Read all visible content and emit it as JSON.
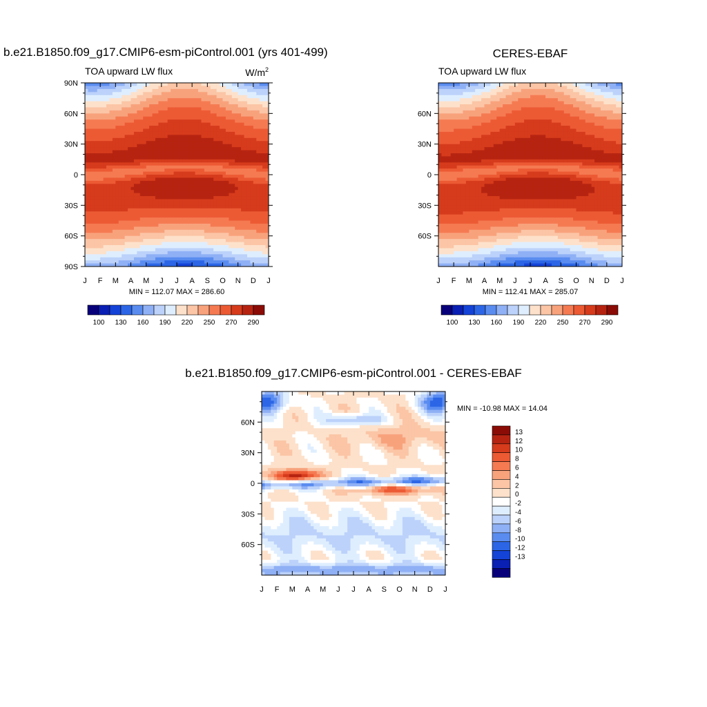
{
  "chart_data": [
    {
      "type": "heatmap",
      "id": "model",
      "title": "b.e21.B1850.f09_g17.CMIP6-esm-piControl.001 (yrs 401-499)",
      "subtitle": "TOA upward LW flux",
      "units": "W/m",
      "units_sup": "2",
      "x_labels": [
        "J",
        "F",
        "M",
        "A",
        "M",
        "J",
        "J",
        "A",
        "S",
        "O",
        "N",
        "D",
        "J"
      ],
      "y_labels": [
        {
          "lat": 90,
          "label": "90N"
        },
        {
          "lat": 60,
          "label": "60N"
        },
        {
          "lat": 30,
          "label": "30N"
        },
        {
          "lat": 0,
          "label": "0"
        },
        {
          "lat": -30,
          "label": "30S"
        },
        {
          "lat": -60,
          "label": "60S"
        },
        {
          "lat": -90,
          "label": "90S"
        }
      ],
      "stats": "MIN = 112.07 MAX = 286.60",
      "min": 112.07,
      "max": 286.6
    },
    {
      "type": "heatmap",
      "id": "obs",
      "title": "CERES-EBAF",
      "subtitle": "TOA upward LW flux",
      "x_labels": [
        "J",
        "F",
        "M",
        "A",
        "M",
        "J",
        "J",
        "A",
        "S",
        "O",
        "N",
        "D",
        "J"
      ],
      "y_labels": [
        {
          "lat": 60,
          "label": "60N"
        },
        {
          "lat": 30,
          "label": "30N"
        },
        {
          "lat": 0,
          "label": "0"
        },
        {
          "lat": -30,
          "label": "30S"
        },
        {
          "lat": -60,
          "label": "60S"
        }
      ],
      "stats": "MIN = 112.41 MAX = 285.07",
      "min": 112.41,
      "max": 285.07
    },
    {
      "type": "heatmap",
      "id": "diff",
      "title": "b.e21.B1850.f09_g17.CMIP6-esm-piControl.001 - CERES-EBAF",
      "x_labels": [
        "J",
        "F",
        "M",
        "A",
        "M",
        "J",
        "J",
        "A",
        "S",
        "O",
        "N",
        "D",
        "J"
      ],
      "y_labels": [
        {
          "lat": 60,
          "label": "60N"
        },
        {
          "lat": 30,
          "label": "30N"
        },
        {
          "lat": 0,
          "label": "0"
        },
        {
          "lat": -30,
          "label": "30S"
        },
        {
          "lat": -60,
          "label": "60S"
        }
      ],
      "stats": "MIN = -10.98 MAX =  14.04",
      "min": -10.98,
      "max": 14.04
    }
  ],
  "colorbars": {
    "flux": {
      "levels": [
        100,
        115,
        130,
        145,
        160,
        175,
        190,
        205,
        220,
        235,
        250,
        265,
        270,
        280,
        290
      ],
      "tick_labels": [
        "100",
        "130",
        "160",
        "190",
        "220",
        "250",
        "270",
        "290"
      ],
      "colors": [
        "#08007a",
        "#0a1fb4",
        "#1443d8",
        "#2c66e6",
        "#5a8cf0",
        "#8fb0f5",
        "#bcd2fa",
        "#dfeeff",
        "#fde1cb",
        "#fbc5a6",
        "#f8a27c",
        "#f57a52",
        "#ec5a34",
        "#d63b1c",
        "#b62411",
        "#8b0c07"
      ]
    },
    "diff": {
      "tick_labels": [
        "13",
        "12",
        "10",
        "8",
        "6",
        "4",
        "2",
        "0",
        "-2",
        "-4",
        "-6",
        "-8",
        "-10",
        "-12",
        "-13"
      ],
      "colors": [
        "#8b0c07",
        "#b62411",
        "#d63b1c",
        "#ec5a34",
        "#f57a52",
        "#f8a27c",
        "#fbc5a6",
        "#fde1cb",
        "#ffffff",
        "#dfeeff",
        "#bcd2fa",
        "#8fb0f5",
        "#5a8cf0",
        "#2c66e6",
        "#1443d8",
        "#0a1fb4",
        "#08007a"
      ]
    }
  }
}
